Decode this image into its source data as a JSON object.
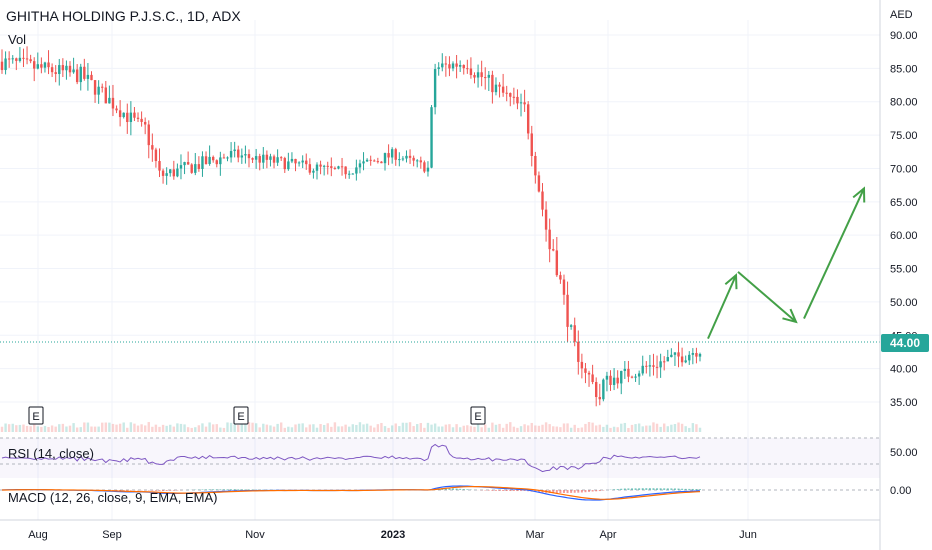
{
  "header": {
    "title": "GHITHA HOLDING P.J.S.C., 1D, ADX",
    "vol_label": "Vol",
    "currency": "AED"
  },
  "price": {
    "last": "44.00",
    "last_value": 44.0,
    "up_color": "#26a69a",
    "down_color": "#ef5350"
  },
  "indicators": {
    "rsi_label": "RSI (14, close)",
    "rsi_value": "50.00",
    "macd_label": "MACD (12, 26, close, 9, EMA, EMA)",
    "macd_value": "0.00"
  },
  "earnings_marker": "E",
  "chart_data": {
    "type": "candlestick",
    "x_ticks": [
      "Aug",
      "Sep",
      "Nov",
      "2023",
      "Mar",
      "Apr",
      "Jun"
    ],
    "y_ticks": [
      "35.00",
      "40.00",
      "45.00",
      "50.00",
      "55.00",
      "60.00",
      "65.00",
      "70.00",
      "75.00",
      "80.00",
      "85.00",
      "90.00"
    ],
    "ylim": [
      32,
      92
    ],
    "segments": [
      {
        "n": 22,
        "from": 86,
        "to": 84,
        "noise": 2.5
      },
      {
        "n": 18,
        "from": 84,
        "to": 76,
        "noise": 2.5
      },
      {
        "n": 5,
        "from": 76,
        "to": 69,
        "noise": 2.5
      },
      {
        "n": 20,
        "from": 69,
        "to": 72,
        "noise": 2.2
      },
      {
        "n": 30,
        "from": 72,
        "to": 69.5,
        "noise": 1.8
      },
      {
        "n": 15,
        "from": 69.5,
        "to": 72,
        "noise": 1.8
      },
      {
        "n": 10,
        "from": 72,
        "to": 70,
        "noise": 1.5
      },
      {
        "n": 1,
        "from": 70,
        "to": 79,
        "noise": 0.5
      },
      {
        "n": 10,
        "from": 85,
        "to": 86,
        "noise": 2.5
      },
      {
        "n": 15,
        "from": 85,
        "to": 79,
        "noise": 2.5
      },
      {
        "n": 8,
        "from": 79,
        "to": 58,
        "noise": 2.5
      },
      {
        "n": 8,
        "from": 58,
        "to": 40,
        "noise": 3
      },
      {
        "n": 6,
        "from": 41,
        "to": 35.5,
        "noise": 2.5
      },
      {
        "n": 20,
        "from": 38,
        "to": 41.5,
        "noise": 2.2
      },
      {
        "n": 8,
        "from": 41.5,
        "to": 43,
        "noise": 2.2
      }
    ],
    "projection_arrows": [
      {
        "from": [
          44.5,
          45.5
        ],
        "to": [
          54.0,
          55.0
        ]
      },
      {
        "from": [
          54.5,
          54.5
        ],
        "to": [
          47.0,
          48.5
        ]
      },
      {
        "from": [
          47.5,
          48.0
        ],
        "to": [
          67.0,
          70.0
        ]
      }
    ],
    "arrow_color": "#43a047",
    "rsi_level": 50.0,
    "macd_level": 0.0,
    "grid": true,
    "legend": "top-left"
  }
}
